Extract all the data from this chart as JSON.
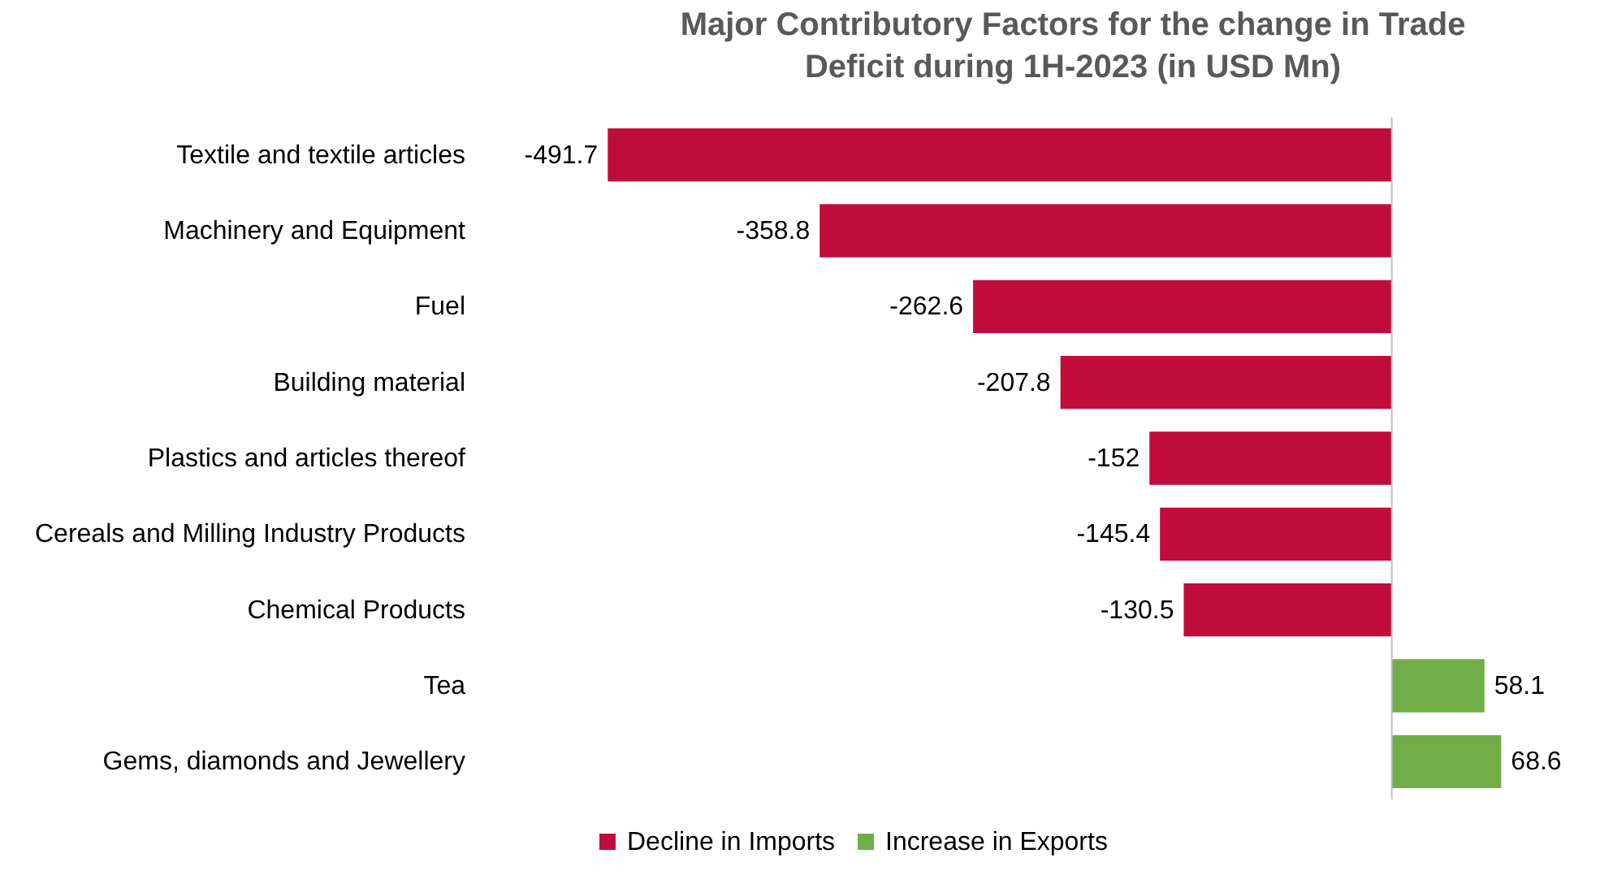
{
  "chart_data": {
    "type": "bar",
    "orientation": "horizontal",
    "title": "Major Contributory Factors for the change in Trade Deficit during 1H-2023 (in USD Mn)",
    "categories": [
      "Textile and textile articles",
      "Machinery and Equipment",
      "Fuel",
      "Building material",
      "Plastics and articles thereof",
      "Cereals and Milling Industry Products",
      "Chemical Products",
      "Tea",
      "Gems, diamonds and Jewellery"
    ],
    "series": [
      {
        "name": "Decline in Imports",
        "color": "#c00d3c",
        "values": [
          -491.7,
          -358.8,
          -262.6,
          -207.8,
          -152,
          -145.4,
          -130.5,
          null,
          null
        ]
      },
      {
        "name": "Increase in Exports",
        "color": "#70ad47",
        "values": [
          null,
          null,
          null,
          null,
          null,
          null,
          null,
          58.1,
          68.6
        ]
      }
    ],
    "data_labels": true,
    "legend": "bottom",
    "grid": false
  }
}
